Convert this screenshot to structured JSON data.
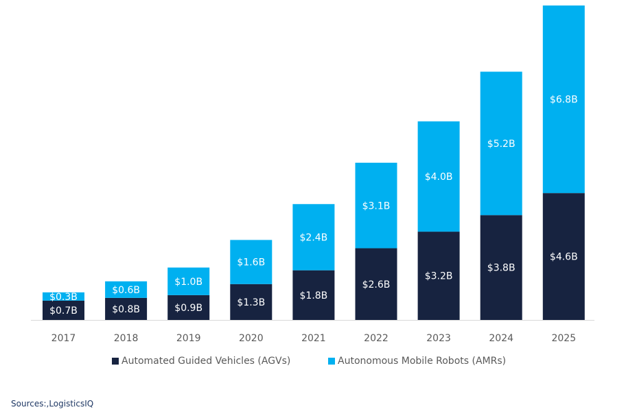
{
  "chart_data": {
    "type": "bar",
    "stacked": true,
    "title": "",
    "xlabel": "",
    "ylabel": "",
    "categories": [
      "2017",
      "2018",
      "2019",
      "2020",
      "2021",
      "2022",
      "2023",
      "2024",
      "2025"
    ],
    "series": [
      {
        "name": "Automated Guided Vehicles (AGVs)",
        "color": "#172340",
        "values": [
          0.7,
          0.8,
          0.9,
          1.3,
          1.8,
          2.6,
          3.2,
          3.8,
          4.6
        ],
        "labels": [
          "$0.7B",
          "$0.8B",
          "$0.9B",
          "$1.3B",
          "$1.8B",
          "$2.6B",
          "$3.2B",
          "$3.8B",
          "$4.6B"
        ]
      },
      {
        "name": "Autonomous Mobile Robots (AMRs)",
        "color": "#00b0f0",
        "values": [
          0.3,
          0.6,
          1.0,
          1.6,
          2.4,
          3.1,
          4.0,
          5.2,
          6.8
        ],
        "labels": [
          "$0.3B",
          "$0.6B",
          "$1.0B",
          "$1.6B",
          "$2.4B",
          "$3.1B",
          "$4.0B",
          "$5.2B",
          "$6.8B"
        ]
      }
    ],
    "ylim": [
      0,
      11.4
    ],
    "grid": false,
    "legend_position": "bottom"
  },
  "source": "Sources:,LogisticsIQ"
}
